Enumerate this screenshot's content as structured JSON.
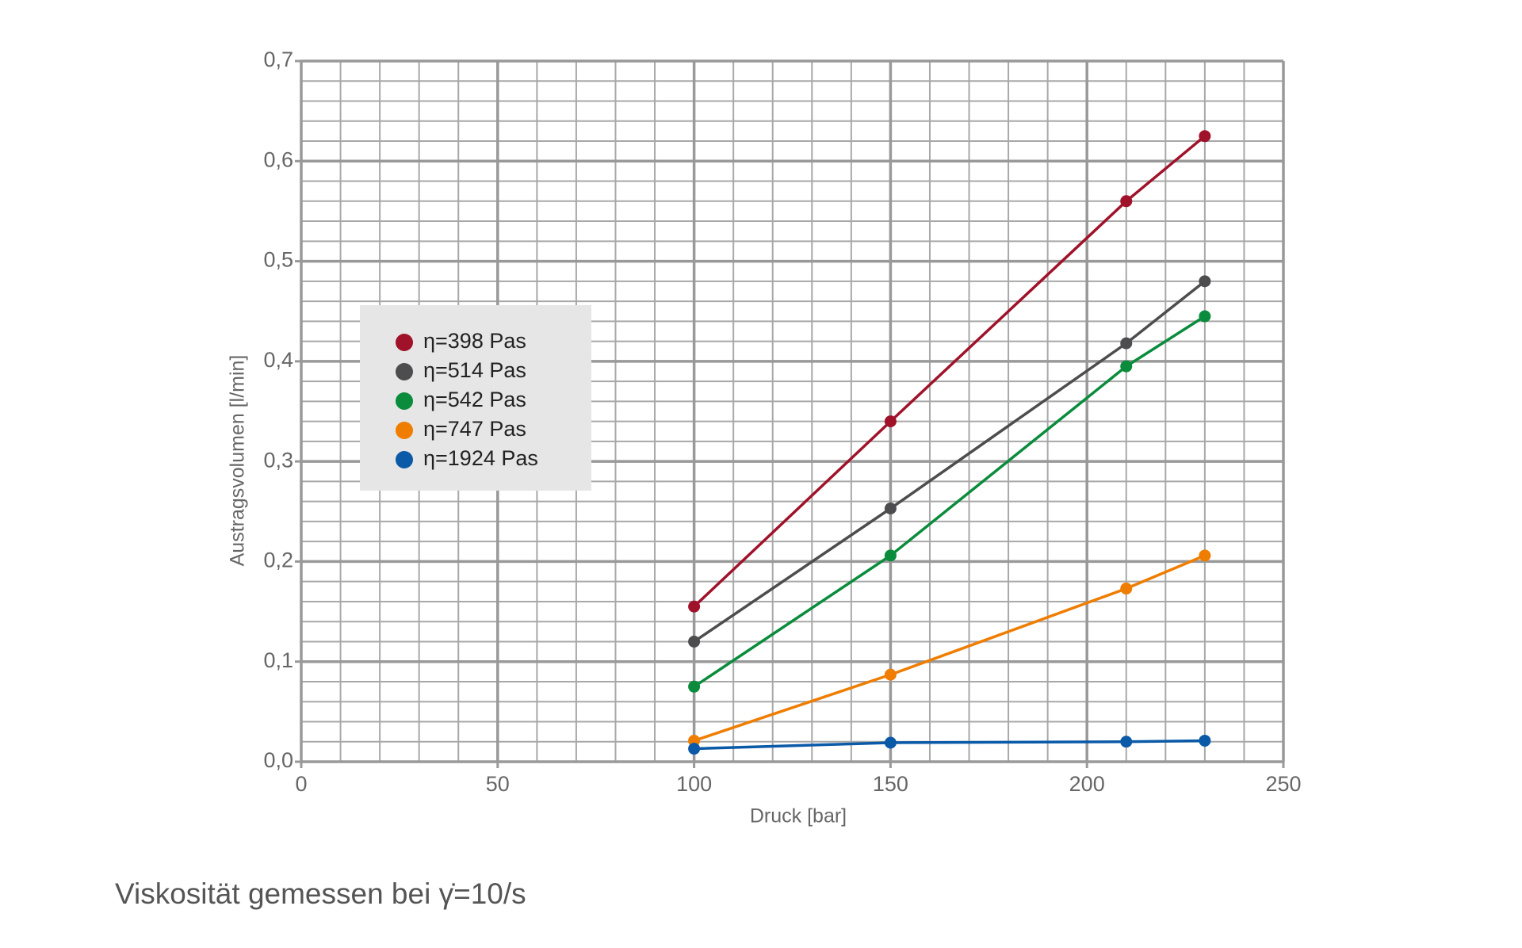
{
  "chart_data": {
    "type": "line",
    "x_label": "Druck [bar]",
    "y_label": "Austragsvolumen [l/min]",
    "note": "Viskosität gemessen bei γ̇=10/s",
    "xlim": [
      0,
      250
    ],
    "xticks": [
      0,
      50,
      100,
      150,
      200,
      250
    ],
    "ylim": [
      0,
      0.7
    ],
    "yticks": [
      {
        "value": 0,
        "label": "0,0"
      },
      {
        "value": 0.1,
        "label": "0,1"
      },
      {
        "value": 0.2,
        "label": "0,2"
      },
      {
        "value": 0.3,
        "label": "0,3"
      },
      {
        "value": 0.4,
        "label": "0,4"
      },
      {
        "value": 0.5,
        "label": "0,5"
      },
      {
        "value": 0.6,
        "label": "0,6"
      },
      {
        "value": 0.7,
        "label": "0,7"
      }
    ],
    "grid": true,
    "x": [
      100,
      150,
      210,
      230
    ],
    "series": [
      {
        "name": "η=398 Pas",
        "color": "#a0122a",
        "values": [
          0.155,
          0.34,
          0.56,
          0.625
        ]
      },
      {
        "name": "η=514 Pas",
        "color": "#4d4d4f",
        "values": [
          0.12,
          0.253,
          0.418,
          0.48
        ]
      },
      {
        "name": "η=542 Pas",
        "color": "#0a8c3c",
        "values": [
          0.075,
          0.206,
          0.395,
          0.445
        ]
      },
      {
        "name": "η=747 Pas",
        "color": "#ef7d00",
        "values": [
          0.021,
          0.087,
          0.173,
          0.206
        ]
      },
      {
        "name": "η=1924 Pas",
        "color": "#0a5aa8",
        "values": [
          0.013,
          0.019,
          0.02,
          0.021
        ]
      }
    ]
  }
}
